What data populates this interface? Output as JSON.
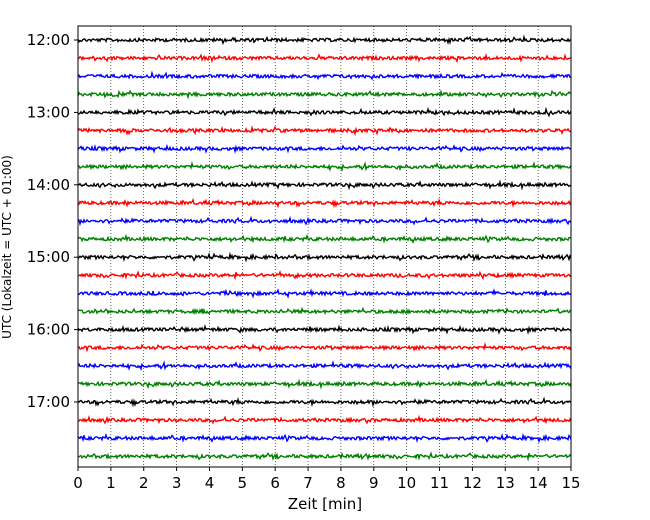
{
  "chart_data": {
    "type": "line",
    "title": "",
    "xlabel": "Zeit  [min]",
    "ylabel": "UTC (Lokalzeit = UTC + 01:00)",
    "xlim": [
      0,
      15
    ],
    "x_ticks": [
      "0",
      "1",
      "2",
      "3",
      "4",
      "5",
      "6",
      "7",
      "8",
      "9",
      "10",
      "11",
      "12",
      "13",
      "14",
      "15"
    ],
    "grid": "vertical dotted at each minute",
    "y_tick_labels": [
      "12:00",
      "13:00",
      "14:00",
      "15:00",
      "16:00",
      "17:00"
    ],
    "trace_interval_minutes": 15,
    "trace_start_times": [
      "12:00",
      "12:15",
      "12:30",
      "12:45",
      "13:00",
      "13:15",
      "13:30",
      "13:45",
      "14:00",
      "14:15",
      "14:30",
      "14:45",
      "15:00",
      "15:15",
      "15:30",
      "15:45",
      "16:00",
      "16:15",
      "16:30",
      "16:45",
      "17:00",
      "17:15",
      "17:30",
      "17:45"
    ],
    "trace_colors_cycle": [
      "#000000",
      "#ff0000",
      "#0000ff",
      "#008000"
    ]
  }
}
